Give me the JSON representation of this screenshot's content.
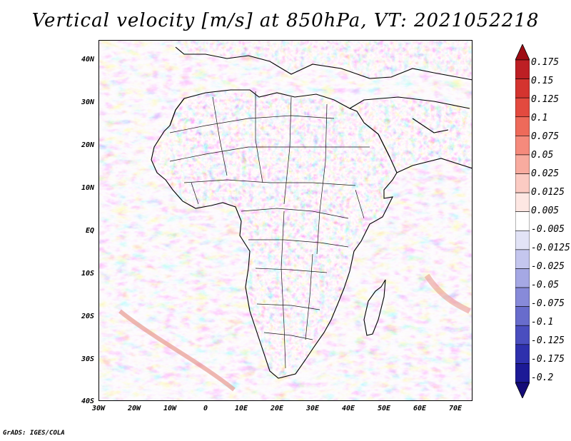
{
  "title": "Vertical velocity [m/s] at 850hPa, VT: 2021052218",
  "credit": "GrADS: IGES/COLA",
  "axes": {
    "lat_labels": [
      "40N",
      "30N",
      "20N",
      "10N",
      "EQ",
      "10S",
      "20S",
      "30S",
      "40S"
    ],
    "lon_labels": [
      "30W",
      "20W",
      "10W",
      "0",
      "10E",
      "20E",
      "30E",
      "40E",
      "50E",
      "60E",
      "70E"
    ]
  },
  "map": {
    "extent_lon": [
      -30,
      75
    ],
    "extent_lat": [
      -40,
      45
    ],
    "variable": "vertical velocity",
    "level": "850hPa",
    "valid_time": "2021052218"
  },
  "colorbar": {
    "labels": [
      "0.175",
      "0.15",
      "0.125",
      "0.1",
      "0.075",
      "0.05",
      "0.025",
      "0.0125",
      "0.005",
      "-0.005",
      "-0.0125",
      "-0.025",
      "-0.05",
      "-0.075",
      "-0.1",
      "-0.125",
      "-0.175",
      "-0.2"
    ],
    "colors": [
      "#9e0d14",
      "#bd1f24",
      "#d4342f",
      "#e34a3f",
      "#ee6a5a",
      "#f58a7c",
      "#f8ab9f",
      "#fbcbc3",
      "#fde7e3",
      "#ffffff",
      "#e2e3f6",
      "#c4c6ee",
      "#a5a8e4",
      "#878ad9",
      "#686ccc",
      "#4a4ebf",
      "#2e30ad",
      "#1c1a96",
      "#140c78"
    ]
  }
}
